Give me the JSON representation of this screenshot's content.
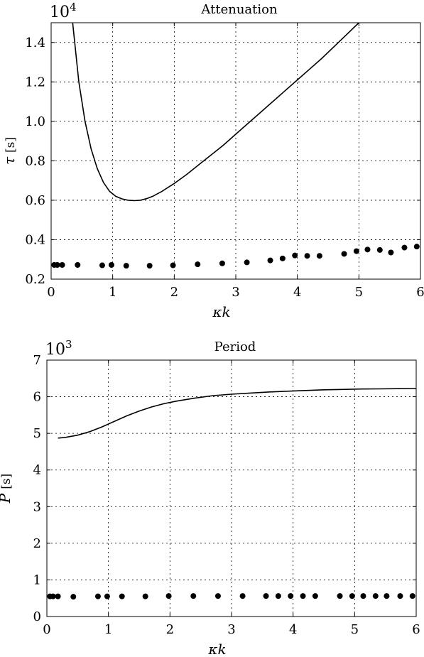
{
  "chart_data": [
    {
      "type": "scatter",
      "title": "Attenuation",
      "scale_label": "10^4",
      "scale_base": "10",
      "scale_exp": "4",
      "xlabel": "κk",
      "ylabel_symbol": "τ",
      "ylabel_unit": "[s]",
      "xlim": [
        0,
        6
      ],
      "ylim": [
        0.2,
        1.5
      ],
      "xticks": [
        0,
        1,
        2,
        3,
        4,
        5,
        6
      ],
      "xtick_labels": [
        "0",
        "1",
        "2",
        "3",
        "4",
        "5",
        "6"
      ],
      "yticks": [
        0.2,
        0.4,
        0.6,
        0.8,
        1.0,
        1.2,
        1.4
      ],
      "ytick_labels": [
        "0.2",
        "0.4",
        "0.6",
        "0.8",
        "1.0",
        "1.2",
        "1.4"
      ],
      "grid": true,
      "series": [
        {
          "kind": "line",
          "x": [
            0.35,
            0.45,
            0.55,
            0.65,
            0.75,
            0.85,
            0.95,
            1.05,
            1.15,
            1.25,
            1.35,
            1.45,
            1.55,
            1.65,
            1.8,
            2.0,
            2.2,
            2.4,
            2.6,
            2.8,
            3.0,
            3.2,
            3.4,
            3.6,
            3.8,
            4.0,
            4.2,
            4.4,
            4.6,
            4.8,
            5.0
          ],
          "y": [
            1.5,
            1.2,
            1.0,
            0.86,
            0.76,
            0.69,
            0.645,
            0.62,
            0.607,
            0.6,
            0.598,
            0.6,
            0.608,
            0.62,
            0.645,
            0.685,
            0.73,
            0.78,
            0.83,
            0.88,
            0.935,
            0.99,
            1.045,
            1.1,
            1.155,
            1.21,
            1.265,
            1.32,
            1.38,
            1.44,
            1.5
          ]
        },
        {
          "kind": "points",
          "x": [
            0.05,
            0.1,
            0.18,
            0.43,
            0.83,
            0.98,
            1.22,
            1.6,
            1.98,
            2.38,
            2.78,
            3.18,
            3.56,
            3.76,
            3.96,
            4.16,
            4.36,
            4.76,
            4.96,
            5.14,
            5.34,
            5.52,
            5.74,
            5.94
          ],
          "y": [
            0.272,
            0.272,
            0.272,
            0.272,
            0.27,
            0.272,
            0.268,
            0.268,
            0.27,
            0.275,
            0.28,
            0.285,
            0.295,
            0.305,
            0.32,
            0.318,
            0.318,
            0.328,
            0.342,
            0.35,
            0.348,
            0.335,
            0.36,
            0.365
          ]
        }
      ]
    },
    {
      "type": "scatter",
      "title": "Period",
      "scale_label": "10^3",
      "scale_base": "10",
      "scale_exp": "3",
      "xlabel": "κk",
      "ylabel_symbol": "P",
      "ylabel_unit": "[s]",
      "xlim": [
        0,
        6
      ],
      "ylim": [
        0,
        7
      ],
      "xticks": [
        0,
        1,
        2,
        3,
        4,
        5,
        6
      ],
      "xtick_labels": [
        "0",
        "1",
        "2",
        "3",
        "4",
        "5",
        "6"
      ],
      "yticks": [
        0,
        1,
        2,
        3,
        4,
        5,
        6,
        7
      ],
      "ytick_labels": [
        "0",
        "1",
        "2",
        "3",
        "4",
        "5",
        "6",
        "7"
      ],
      "grid": true,
      "series": [
        {
          "kind": "line",
          "x": [
            0.18,
            0.3,
            0.5,
            0.7,
            0.9,
            1.1,
            1.3,
            1.5,
            1.7,
            1.9,
            2.1,
            2.4,
            2.7,
            3.0,
            3.3,
            3.6,
            3.9,
            4.2,
            4.5,
            4.8,
            5.1,
            5.4,
            5.7,
            6.0
          ],
          "y": [
            4.87,
            4.89,
            4.95,
            5.05,
            5.18,
            5.33,
            5.48,
            5.61,
            5.72,
            5.81,
            5.88,
            5.96,
            6.03,
            6.07,
            6.1,
            6.13,
            6.15,
            6.17,
            6.19,
            6.2,
            6.21,
            6.215,
            6.22,
            6.225
          ]
        },
        {
          "kind": "points",
          "x": [
            0.05,
            0.1,
            0.18,
            0.43,
            0.83,
            0.98,
            1.22,
            1.6,
            1.98,
            2.38,
            2.78,
            3.18,
            3.56,
            3.76,
            3.96,
            4.16,
            4.36,
            4.76,
            4.96,
            5.14,
            5.34,
            5.52,
            5.74,
            5.94
          ],
          "y": [
            0.55,
            0.55,
            0.55,
            0.54,
            0.55,
            0.55,
            0.55,
            0.55,
            0.56,
            0.56,
            0.56,
            0.56,
            0.56,
            0.56,
            0.56,
            0.56,
            0.56,
            0.56,
            0.56,
            0.56,
            0.56,
            0.56,
            0.56,
            0.56
          ]
        }
      ]
    }
  ]
}
